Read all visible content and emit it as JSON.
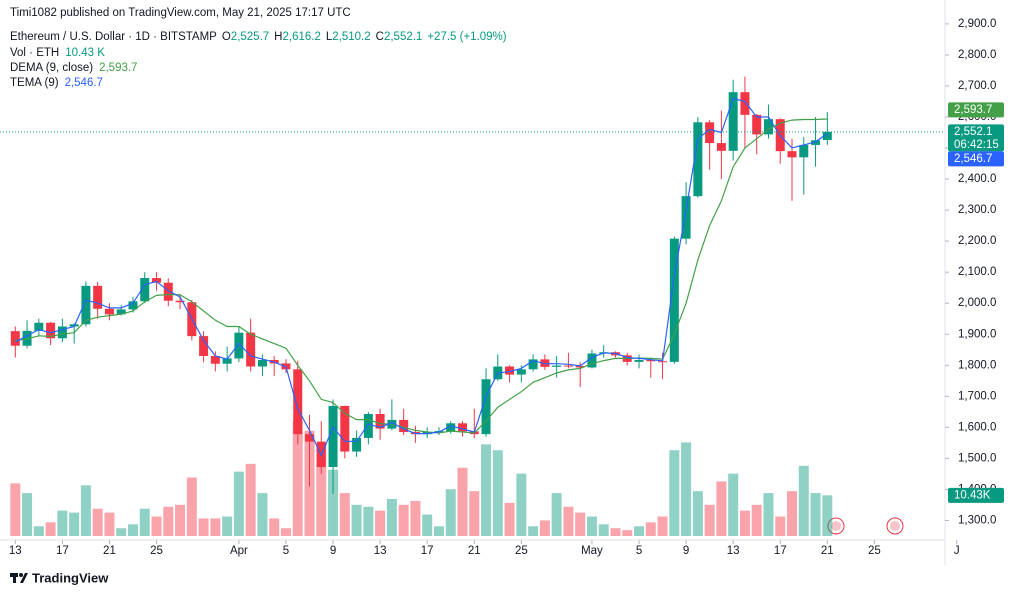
{
  "chart_data": {
    "type": "candlestick",
    "attribution": "Timi1082 published on TradingView.com, May 21, 2025 17:17 UTC",
    "symbol": "Ethereum / U.S. Dollar · 1D · BITSTAMP",
    "ohlc_legend": [
      {
        "key": "O",
        "label": "2,525.7"
      },
      {
        "key": "H",
        "label": "2,616.2"
      },
      {
        "key": "L",
        "label": "2,510.2"
      },
      {
        "key": "C",
        "label": "2,552.1"
      }
    ],
    "change": "+27.5 (+1.09%)",
    "up_color": "#089981",
    "down_color": "#f23645",
    "x": [
      0,
      1,
      2,
      3,
      4,
      5,
      6,
      7,
      8,
      9,
      10,
      11,
      12,
      13,
      14,
      15,
      16,
      17,
      18,
      19,
      20,
      21,
      22,
      23,
      24,
      25,
      26,
      27,
      28,
      29,
      30,
      31,
      32,
      33,
      34,
      35,
      36,
      37,
      38,
      39,
      40,
      41,
      42,
      43,
      44,
      45,
      46,
      47,
      48,
      49,
      50,
      51,
      52,
      53,
      54,
      55,
      56,
      57,
      58,
      59,
      60,
      61,
      62,
      63,
      64,
      65,
      66,
      67,
      68,
      69
    ],
    "open": [
      1910,
      1863,
      1911,
      1937,
      1887,
      1925,
      1932,
      2056,
      1982,
      1964,
      1980,
      2006,
      2081,
      2066,
      2008,
      2003,
      1894,
      1830,
      1805,
      1822,
      1905,
      1796,
      1817,
      1806,
      1787,
      1578,
      1554,
      1472,
      1669,
      1522,
      1566,
      1643,
      1596,
      1624,
      1585,
      1578,
      1585,
      1588,
      1613,
      1587,
      1578,
      1755,
      1796,
      1770,
      1787,
      1819,
      1795,
      1799,
      1798,
      1793,
      1838,
      1842,
      1832,
      1811,
      1817,
      1813,
      1811,
      2208,
      2345,
      2583,
      2516,
      2491,
      2680,
      2607,
      2544,
      2593,
      2490,
      2470,
      2510,
      2525.7
    ],
    "high": [
      1925,
      1945,
      1950,
      1940,
      1950,
      1935,
      2070,
      2068,
      2000,
      1995,
      2020,
      2100,
      2100,
      2080,
      2030,
      2010,
      1910,
      1845,
      1860,
      1925,
      1950,
      1835,
      1830,
      1820,
      1815,
      1640,
      1620,
      1690,
      1670,
      1590,
      1650,
      1660,
      1690,
      1660,
      1605,
      1600,
      1600,
      1620,
      1620,
      1660,
      1790,
      1835,
      1800,
      1800,
      1835,
      1835,
      1830,
      1840,
      1810,
      1850,
      1865,
      1845,
      1840,
      1835,
      1825,
      1840,
      2215,
      2390,
      2600,
      2590,
      2620,
      2720,
      2730,
      2610,
      2640,
      2596,
      2530,
      2535,
      2600,
      2616.2
    ],
    "low": [
      1825,
      1855,
      1895,
      1865,
      1875,
      1870,
      1925,
      1950,
      1945,
      1960,
      1970,
      2000,
      2040,
      1990,
      1980,
      1880,
      1810,
      1780,
      1780,
      1810,
      1780,
      1765,
      1765,
      1775,
      1545,
      1410,
      1450,
      1385,
      1500,
      1505,
      1545,
      1560,
      1590,
      1575,
      1550,
      1565,
      1575,
      1580,
      1570,
      1565,
      1570,
      1750,
      1745,
      1745,
      1780,
      1785,
      1760,
      1790,
      1730,
      1790,
      1825,
      1825,
      1800,
      1790,
      1760,
      1755,
      1805,
      2190,
      2340,
      2430,
      2400,
      2460,
      2500,
      2480,
      2530,
      2450,
      2330,
      2350,
      2440,
      2510.2
    ],
    "close": [
      1863,
      1911,
      1937,
      1887,
      1925,
      1932,
      2056,
      1982,
      1964,
      1980,
      2006,
      2081,
      2066,
      2008,
      2003,
      1894,
      1830,
      1805,
      1822,
      1905,
      1796,
      1817,
      1806,
      1787,
      1578,
      1554,
      1472,
      1669,
      1522,
      1566,
      1643,
      1596,
      1624,
      1585,
      1578,
      1585,
      1588,
      1613,
      1587,
      1578,
      1755,
      1796,
      1770,
      1787,
      1819,
      1795,
      1799,
      1798,
      1793,
      1838,
      1842,
      1832,
      1811,
      1817,
      1813,
      1811,
      2208,
      2345,
      2583,
      2516,
      2491,
      2680,
      2607,
      2544,
      2593,
      2490,
      2470,
      2510,
      2525,
      2552.1
    ],
    "volume": {
      "name": "Vol · ETH",
      "values": [
        13.5,
        11,
        2.5,
        3.5,
        6.5,
        6,
        13,
        7,
        6,
        2,
        3,
        7,
        5,
        7.5,
        8,
        15,
        4.5,
        4.5,
        5,
        16.5,
        18.5,
        11,
        4.5,
        2,
        29.5,
        27,
        23.5,
        17,
        11,
        8,
        7.5,
        6.5,
        9.5,
        8,
        9,
        5.5,
        2.5,
        12,
        17.5,
        11.5,
        23.5,
        22,
        8.5,
        16,
        2.5,
        4,
        11,
        7.5,
        6,
        5,
        3,
        2,
        1.5,
        2.5,
        3.5,
        5,
        22,
        24,
        11.5,
        8,
        14,
        16,
        6.5,
        8,
        11,
        5,
        11.5,
        18,
        11,
        10.43
      ],
      "value_label": "10.43 K",
      "axis_label": "10.43K"
    },
    "series": [
      {
        "name": "DEMA (9, close)",
        "color": "#43a047",
        "value_label": "2,593.7",
        "values": [
          1880,
          1885,
          1895,
          1893,
          1900,
          1905,
          1945,
          1955,
          1960,
          1965,
          1975,
          2005,
          2025,
          2028,
          2027,
          2005,
          1975,
          1945,
          1925,
          1925,
          1900,
          1885,
          1870,
          1855,
          1800,
          1750,
          1690,
          1680,
          1645,
          1625,
          1625,
          1612,
          1610,
          1600,
          1590,
          1585,
          1582,
          1588,
          1585,
          1582,
          1620,
          1665,
          1690,
          1715,
          1745,
          1760,
          1775,
          1785,
          1790,
          1805,
          1815,
          1822,
          1822,
          1823,
          1822,
          1820,
          1900,
          2000,
          2140,
          2250,
          2330,
          2440,
          2500,
          2530,
          2560,
          2580,
          2590,
          2592,
          2592,
          2593.7
        ]
      },
      {
        "name": "TEMA (9)",
        "color": "#2962ff",
        "value_label": "2,546.7",
        "values": [
          1875,
          1895,
          1915,
          1905,
          1915,
          1925,
          2010,
          2000,
          1985,
          1985,
          2000,
          2060,
          2070,
          2040,
          2020,
          1950,
          1880,
          1830,
          1820,
          1870,
          1830,
          1820,
          1810,
          1795,
          1660,
          1590,
          1510,
          1600,
          1555,
          1555,
          1610,
          1600,
          1615,
          1595,
          1580,
          1580,
          1585,
          1605,
          1595,
          1585,
          1700,
          1775,
          1780,
          1790,
          1815,
          1805,
          1805,
          1803,
          1798,
          1825,
          1840,
          1838,
          1825,
          1822,
          1818,
          1814,
          2090,
          2300,
          2530,
          2560,
          2550,
          2660,
          2650,
          2600,
          2600,
          2540,
          2500,
          2510,
          2520,
          2546.7
        ]
      }
    ],
    "close_label": "2,552.1",
    "countdown": "06:42:15",
    "ylim": [
      1237,
      2977
    ],
    "yticks": [
      {
        "value": 1300,
        "label": "1,300.0"
      },
      {
        "value": 1400,
        "label": "1,400.0"
      },
      {
        "value": 1500,
        "label": "1,500.0"
      },
      {
        "value": 1600,
        "label": "1,600.0"
      },
      {
        "value": 1700,
        "label": "1,700.0"
      },
      {
        "value": 1800,
        "label": "1,800.0"
      },
      {
        "value": 1900,
        "label": "1,900.0"
      },
      {
        "value": 2000,
        "label": "2,000.0"
      },
      {
        "value": 2100,
        "label": "2,100.0"
      },
      {
        "value": 2200,
        "label": "2,200.0"
      },
      {
        "value": 2300,
        "label": "2,300.0"
      },
      {
        "value": 2400,
        "label": "2,400.0"
      },
      {
        "value": 2500,
        "label": "2,500.0"
      },
      {
        "value": 2600,
        "label": "2,600.0"
      },
      {
        "value": 2700,
        "label": "2,700.0"
      },
      {
        "value": 2800,
        "label": "2,800.0"
      },
      {
        "value": 2900,
        "label": "2,900.0"
      }
    ],
    "xlim": [
      -1.3,
      79
    ],
    "xticks": [
      {
        "value": 0,
        "label": "13"
      },
      {
        "value": 4,
        "label": "17"
      },
      {
        "value": 8,
        "label": "21"
      },
      {
        "value": 12,
        "label": "25"
      },
      {
        "value": 19,
        "label": "Apr"
      },
      {
        "value": 23,
        "label": "5"
      },
      {
        "value": 27,
        "label": "9"
      },
      {
        "value": 31,
        "label": "13"
      },
      {
        "value": 35,
        "label": "17"
      },
      {
        "value": 39,
        "label": "21"
      },
      {
        "value": 43,
        "label": "25"
      },
      {
        "value": 49,
        "label": "May"
      },
      {
        "value": 53,
        "label": "5"
      },
      {
        "value": 57,
        "label": "9"
      },
      {
        "value": 61,
        "label": "13"
      },
      {
        "value": 65,
        "label": "17"
      },
      {
        "value": 69,
        "label": "21"
      },
      {
        "value": 73,
        "label": "25"
      },
      {
        "value": 80,
        "label": "J"
      }
    ],
    "brand": "TradingView"
  }
}
